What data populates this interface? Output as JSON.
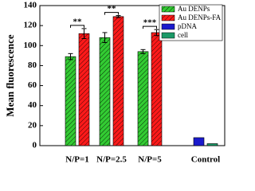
{
  "chart_data": {
    "type": "bar",
    "y_label": "Mean fluorescence",
    "categories": [
      "N/P=1",
      "N/P=2.5",
      "N/P=5",
      "Control"
    ],
    "series": [
      {
        "name": "Au DENPs",
        "color": "#33cc33",
        "pattern": "hatch",
        "values": [
          89,
          108,
          94,
          null
        ],
        "errors": [
          3,
          5,
          2,
          null
        ]
      },
      {
        "name": "Au DENPs-FA",
        "color": "#ff1a1a",
        "pattern": "hatch",
        "values": [
          112,
          129,
          113,
          null
        ],
        "errors": [
          5,
          1,
          3,
          null
        ]
      },
      {
        "name": "pDNA",
        "color": "#1a1acc",
        "pattern": "solid",
        "values": [
          null,
          null,
          null,
          8
        ],
        "errors": [
          null,
          null,
          null,
          null
        ]
      },
      {
        "name": "cell",
        "color": "#1a9966",
        "pattern": "solid",
        "values": [
          null,
          null,
          null,
          2
        ],
        "errors": [
          null,
          null,
          null,
          null
        ]
      }
    ],
    "annotations": [
      {
        "text": "**",
        "category": "N/P=1"
      },
      {
        "text": "**",
        "category": "N/P=2.5"
      },
      {
        "text": "***",
        "category": "N/P=5"
      }
    ],
    "ylim": [
      0,
      140
    ],
    "yticks": [
      0,
      20,
      40,
      60,
      80,
      100,
      120,
      140
    ],
    "grid": false,
    "legend": "upper right"
  }
}
